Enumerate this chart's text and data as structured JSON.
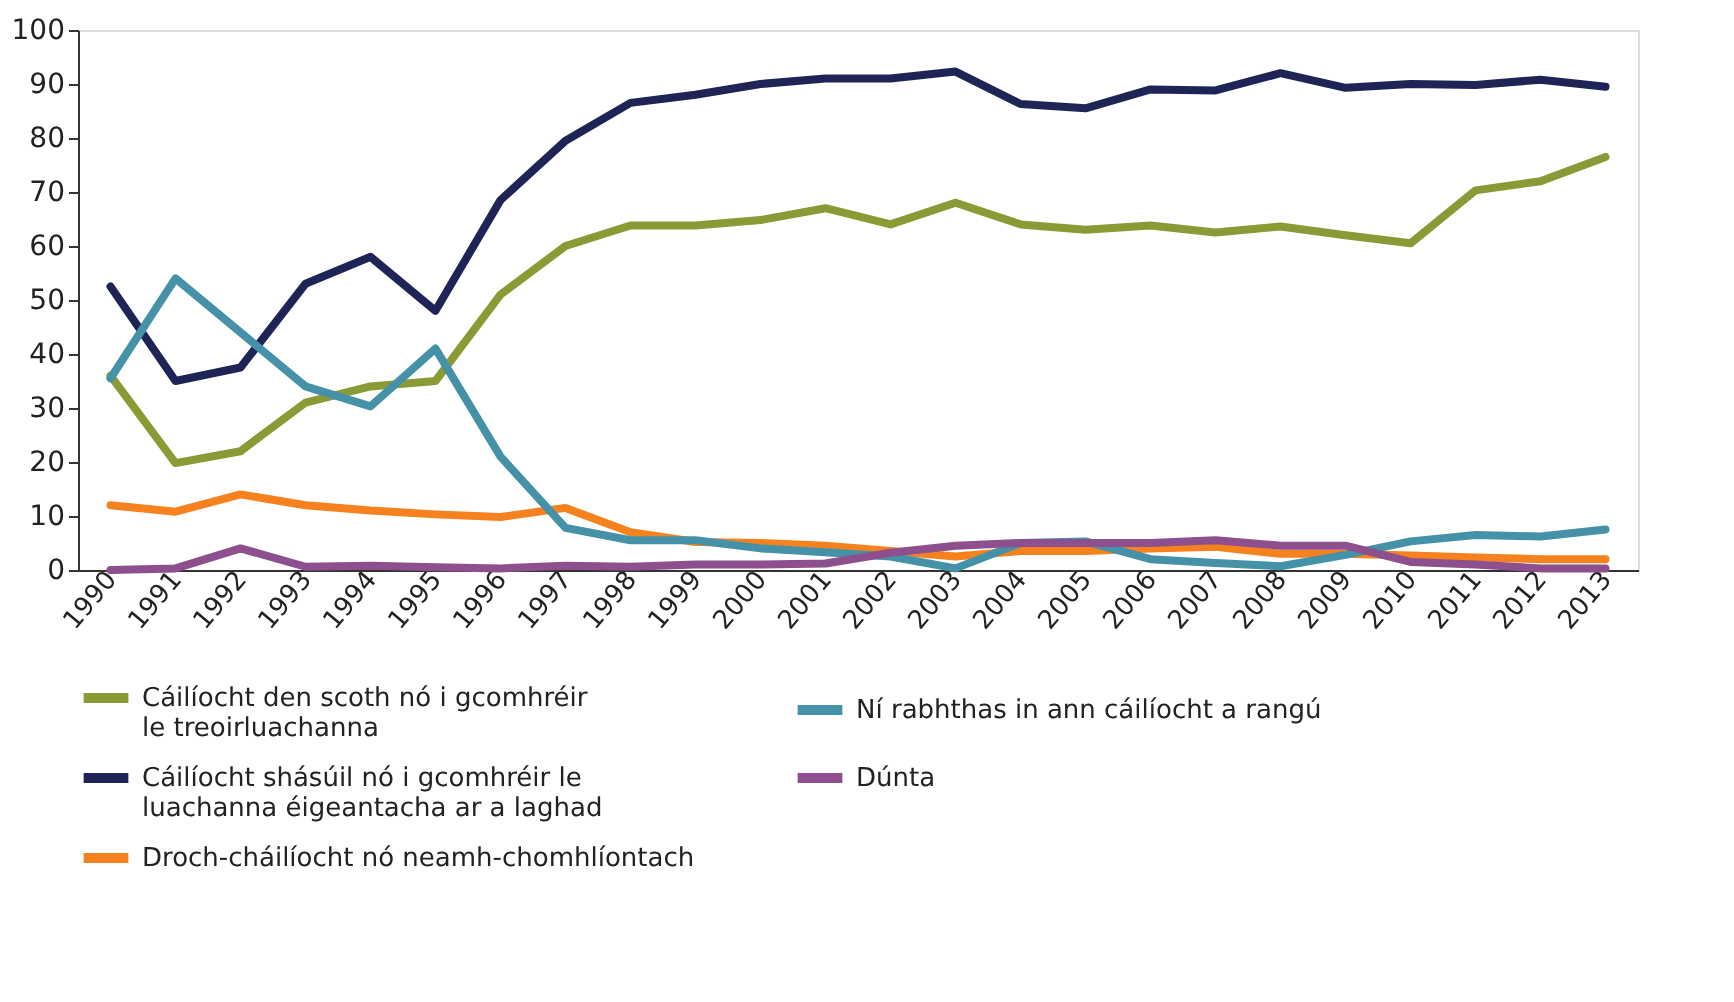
{
  "chart_data": {
    "type": "line",
    "categories": [
      "1990",
      "1991",
      "1992",
      "1993",
      "1994",
      "1995",
      "1996",
      "1997",
      "1998",
      "1999",
      "2000",
      "2001",
      "2002",
      "2003",
      "2004",
      "2005",
      "2006",
      "2007",
      "2008",
      "2009",
      "2010",
      "2011",
      "2012",
      "2013"
    ],
    "series": [
      {
        "name": "Cáilíocht den scoth nó i gcomhréir le treoirluachanna",
        "color": "#8a9a35",
        "values": [
          36,
          19.8,
          22,
          31,
          34,
          35,
          51,
          60,
          63.8,
          63.8,
          64.8,
          67,
          64,
          68,
          64,
          63,
          63.8,
          62.5,
          63.6,
          62,
          60.5,
          70.3,
          72,
          76.5
        ]
      },
      {
        "name": "Cáilíocht shásúil nó i gcomhréir le luachanna éigeantacha ar a laghad",
        "color": "#1e2456",
        "values": [
          52.5,
          35,
          37.5,
          53,
          58,
          48,
          68.5,
          79.5,
          86.5,
          88,
          90,
          91,
          91,
          92.3,
          86.3,
          85.5,
          89,
          88.8,
          92,
          89.3,
          90,
          89.8,
          90.8,
          89.5
        ]
      },
      {
        "name": "Droch-cháilíocht nó neamh-chomhlíontach",
        "color": "#f5821f",
        "values": [
          12,
          10.8,
          14,
          12,
          11,
          10.3,
          9.8,
          11.5,
          7,
          5.2,
          5,
          4.5,
          3.5,
          2.5,
          3.5,
          3.5,
          4,
          4.3,
          3,
          3,
          2.7,
          2.3,
          2,
          2
        ]
      },
      {
        "name": "Ní rabhthas in ann cáilíocht a rangú",
        "color": "#4592a8",
        "values": [
          35.5,
          54,
          44,
          34,
          30.3,
          41,
          21,
          7.8,
          5.5,
          5.5,
          4,
          3.3,
          2.5,
          0.3,
          5,
          5.3,
          2,
          1.3,
          0.7,
          2.8,
          5.3,
          6.5,
          6.2,
          7.5
        ]
      },
      {
        "name": "Dúnta",
        "color": "#8e4f8f",
        "values": [
          0,
          0.3,
          4,
          0.6,
          0.8,
          0.5,
          0.3,
          0.8,
          0.6,
          1,
          1,
          1.2,
          3.2,
          4.5,
          5,
          5,
          5,
          5.5,
          4.5,
          4.5,
          1.5,
          1,
          0.3,
          0.3
        ]
      }
    ],
    "ylim": [
      0,
      100
    ],
    "yticks": [
      0,
      10,
      20,
      30,
      40,
      50,
      60,
      70,
      80,
      90,
      100
    ],
    "grid": false,
    "legend": "bottom",
    "marker": "none",
    "line_style": "solid"
  }
}
